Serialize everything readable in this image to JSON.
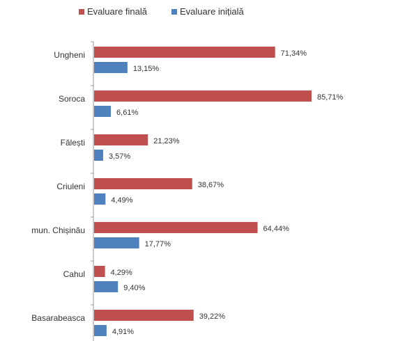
{
  "chart_data": {
    "type": "bar",
    "orientation": "horizontal",
    "categories": [
      "Ungheni",
      "Soroca",
      "Fălești",
      "Criuleni",
      "mun. Chișinău",
      "Cahul",
      "Basarabeasca"
    ],
    "series": [
      {
        "name": "Evaluare finală",
        "color": "#c0504d",
        "values": [
          71.34,
          85.71,
          21.23,
          38.67,
          64.44,
          4.29,
          39.22
        ],
        "labels": [
          "71,34%",
          "85,71%",
          "21,23%",
          "38,67%",
          "64,44%",
          "4,29%",
          "39,22%"
        ]
      },
      {
        "name": "Evaluare inițială",
        "color": "#4f81bd",
        "values": [
          13.15,
          6.61,
          3.57,
          4.49,
          17.77,
          9.4,
          4.91
        ],
        "labels": [
          "13,15%",
          "6,61%",
          "3,57%",
          "4,49%",
          "17,77%",
          "9,40%",
          "4,91%"
        ]
      }
    ],
    "legend_position": "top",
    "grid": false,
    "xlim": [
      0,
      100
    ]
  }
}
